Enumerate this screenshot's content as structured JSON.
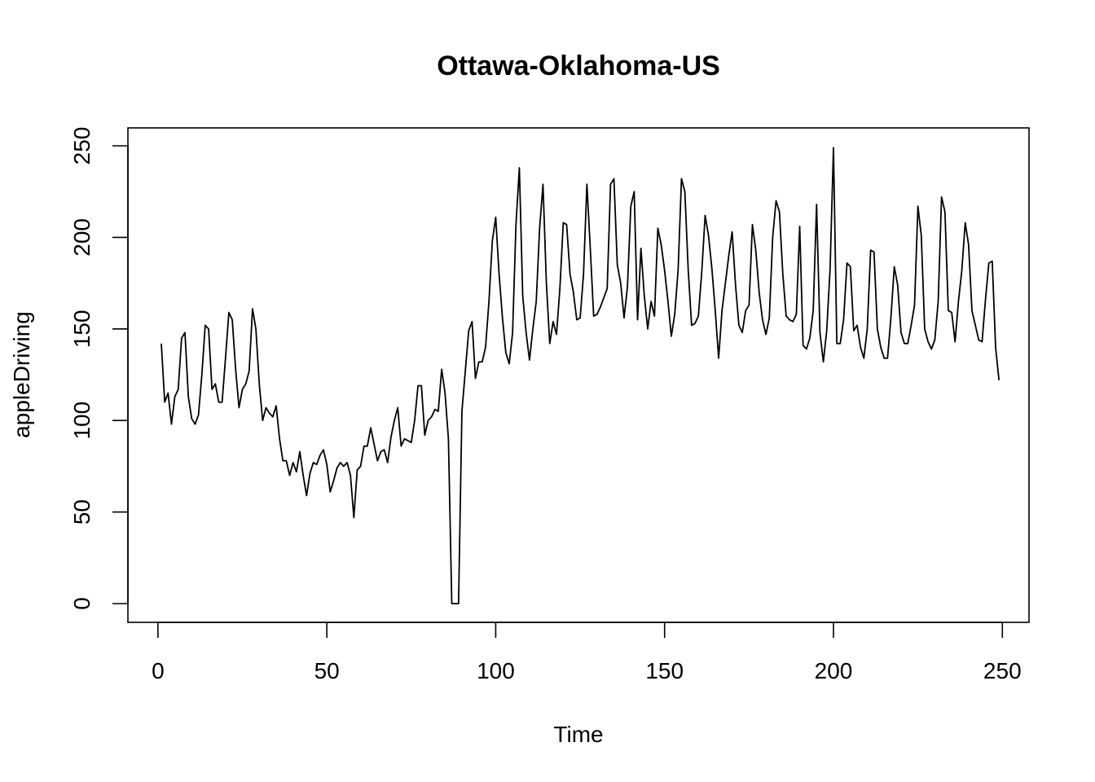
{
  "chart_data": {
    "type": "line",
    "title": "Ottawa-Oklahoma-US",
    "xlabel": "Time",
    "ylabel": "appleDriving",
    "xlim": [
      1,
      248
    ],
    "ylim": [
      0,
      250
    ],
    "x_ticks": [
      0,
      50,
      100,
      150,
      200,
      250
    ],
    "y_ticks": [
      0,
      50,
      100,
      150,
      200,
      250
    ],
    "grid": false,
    "legend": "none",
    "series": [
      {
        "color": "#000000",
        "x_start": 1,
        "values": [
          142,
          110,
          115,
          98,
          113,
          117,
          145,
          148,
          113,
          101,
          98,
          103,
          125,
          152,
          150,
          117,
          120,
          110,
          110,
          134,
          159,
          155,
          128,
          107,
          117,
          120,
          127,
          161,
          150,
          120,
          100,
          107,
          104,
          102,
          108,
          90,
          78,
          78,
          70,
          77,
          72,
          83,
          70,
          59,
          71,
          77,
          76,
          81,
          84,
          76,
          61,
          67,
          74,
          77,
          75,
          77,
          70,
          47,
          73,
          75,
          86,
          86,
          96,
          87,
          78,
          83,
          84,
          77,
          91,
          100,
          107,
          86,
          90,
          89,
          88,
          100,
          119,
          119,
          92,
          100,
          102,
          106,
          105,
          128,
          115,
          90,
          0,
          0,
          0,
          105,
          127,
          149,
          154,
          123,
          132,
          132,
          140,
          165,
          198,
          211,
          180,
          156,
          137,
          131,
          148,
          207,
          238,
          168,
          148,
          133,
          150,
          165,
          205,
          229,
          175,
          142,
          154,
          147,
          172,
          208,
          207,
          180,
          170,
          155,
          156,
          180,
          229,
          194,
          157,
          158,
          162,
          167,
          172,
          229,
          232,
          185,
          175,
          156,
          173,
          217,
          225,
          155,
          194,
          168,
          150,
          165,
          157,
          205,
          196,
          182,
          165,
          146,
          158,
          182,
          232,
          225,
          182,
          152,
          153,
          157,
          181,
          212,
          201,
          183,
          160,
          134,
          160,
          175,
          190,
          203,
          174,
          152,
          148,
          160,
          163,
          207,
          193,
          170,
          155,
          147,
          156,
          200,
          220,
          214,
          180,
          157,
          155,
          154,
          158,
          206,
          141,
          139,
          145,
          160,
          218,
          148,
          132,
          149,
          183,
          249,
          142,
          142,
          155,
          186,
          184,
          149,
          152,
          140,
          134,
          150,
          193,
          192,
          150,
          140,
          134,
          134,
          156,
          184,
          174,
          148,
          142,
          142,
          152,
          163,
          217,
          201,
          150,
          143,
          139,
          144,
          165,
          222,
          214,
          160,
          159,
          143,
          165,
          182,
          208,
          196,
          160,
          152,
          144,
          143,
          166,
          186,
          187,
          140,
          122
        ]
      }
    ]
  }
}
